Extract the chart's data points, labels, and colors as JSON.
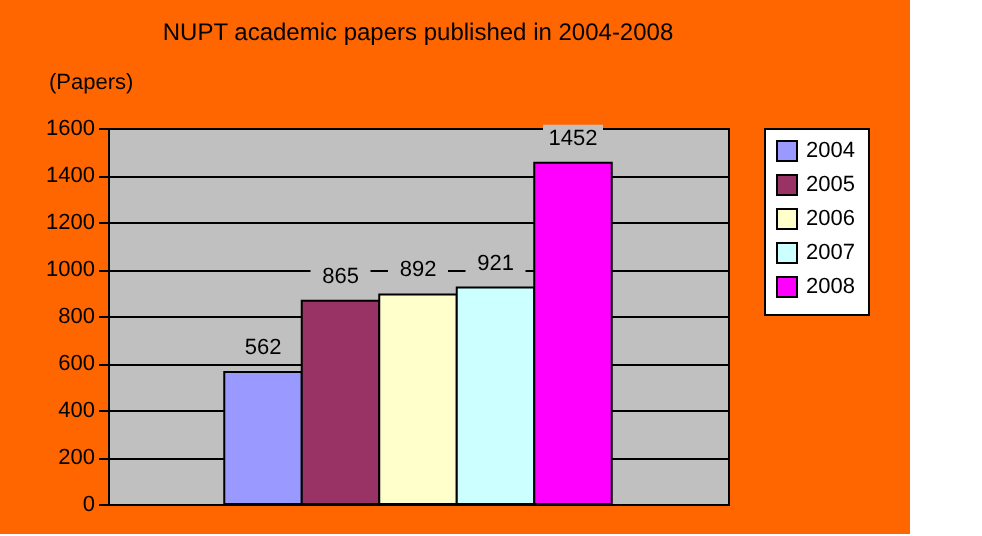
{
  "chart_data": {
    "type": "bar",
    "title": "NUPT academic papers published in 2004-2008",
    "ylabel": "(Papers)",
    "categories": [
      null
    ],
    "series": [
      {
        "name": "2004",
        "color": "#9999ff",
        "values": [
          562
        ]
      },
      {
        "name": "2005",
        "color": "#993366",
        "values": [
          865
        ]
      },
      {
        "name": "2006",
        "color": "#ffffcc",
        "values": [
          892
        ]
      },
      {
        "name": "2007",
        "color": "#ccffff",
        "values": [
          921
        ]
      },
      {
        "name": "2008",
        "color": "#ff00ff",
        "values": [
          1452
        ]
      }
    ],
    "ylim": [
      0,
      1600
    ],
    "yticks": [
      0,
      200,
      400,
      600,
      800,
      1000,
      1200,
      1400,
      1600
    ],
    "grid": "y",
    "legend": "right",
    "data_labels": true,
    "tick_labels": "y"
  }
}
